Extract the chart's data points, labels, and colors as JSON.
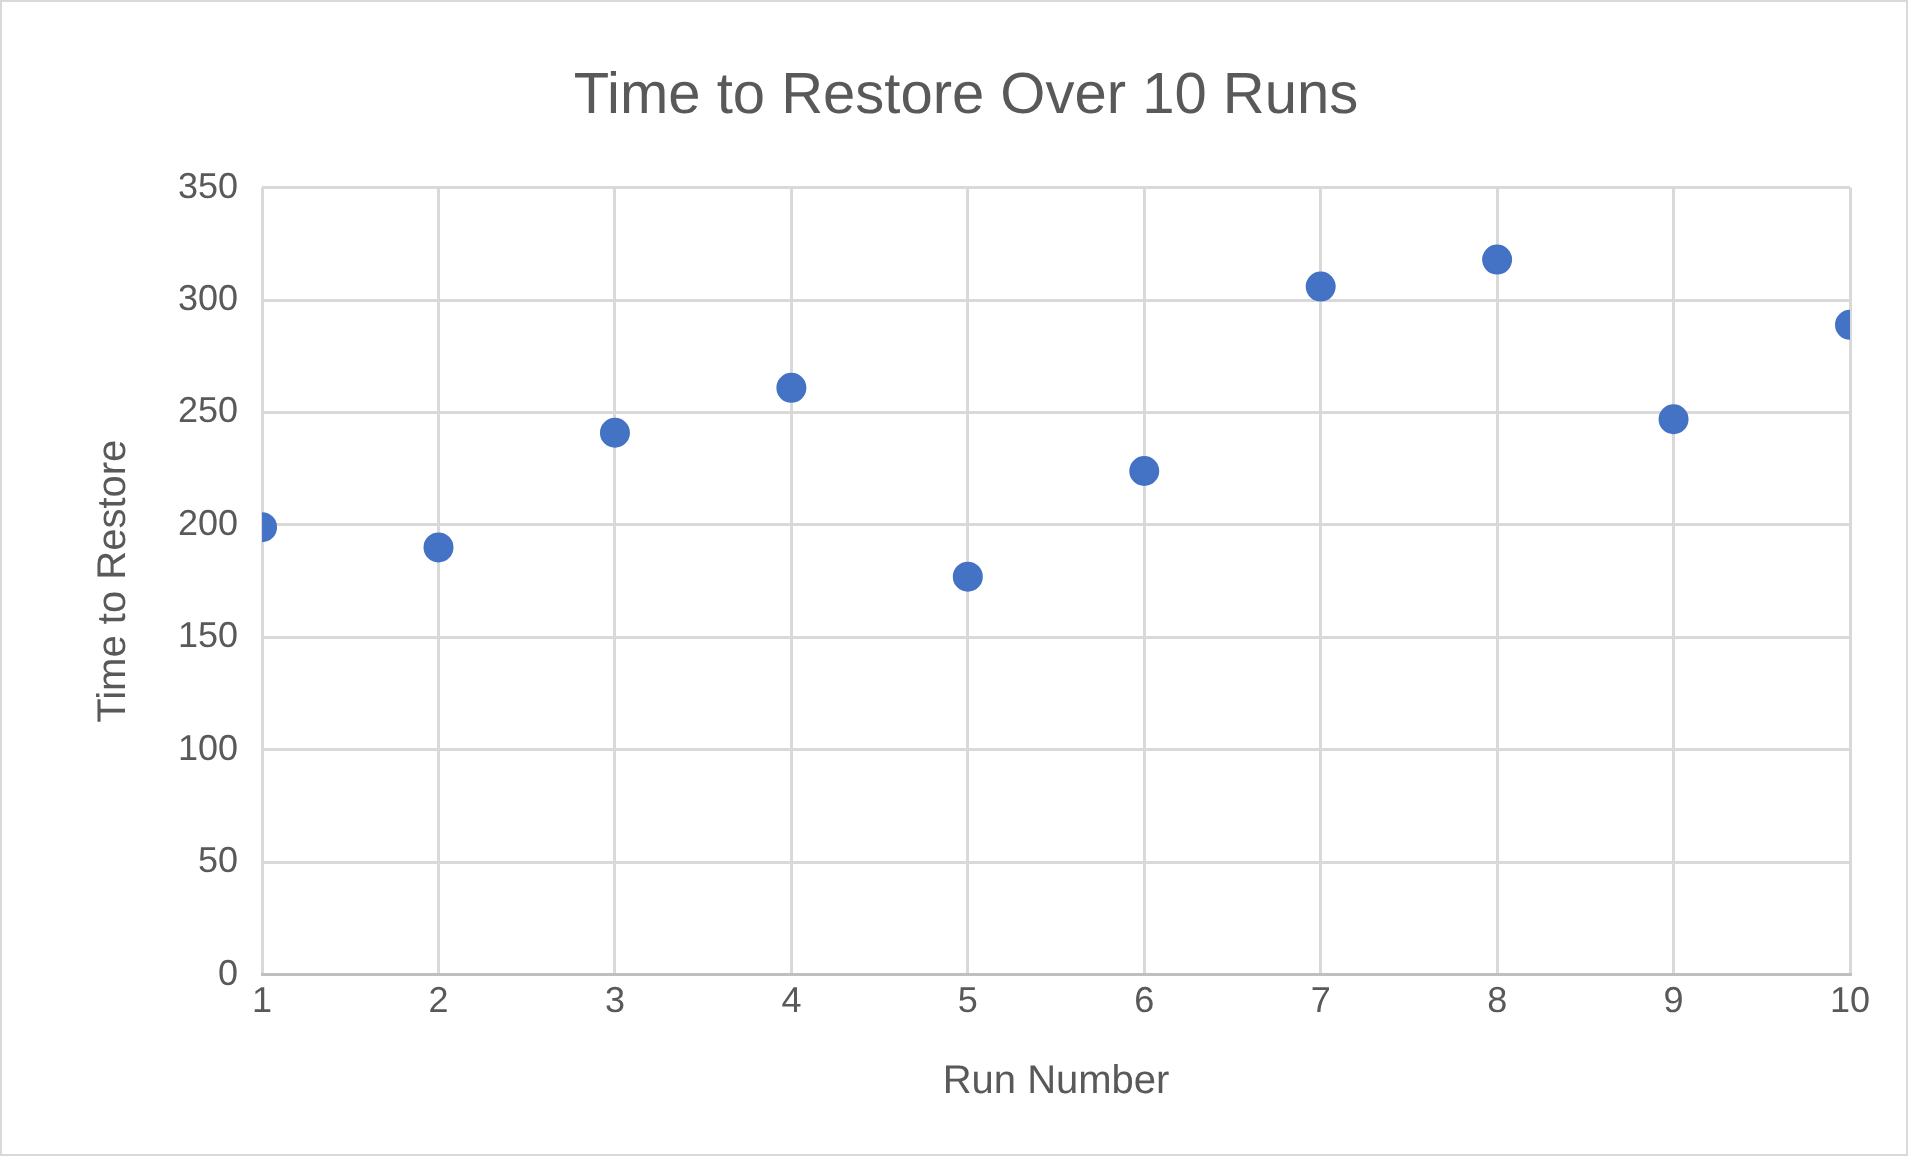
{
  "chart_data": {
    "type": "scatter",
    "title": "Time to Restore Over 10 Runs",
    "xlabel": "Run Number",
    "ylabel": "Time to Restore",
    "x": [
      1,
      2,
      3,
      4,
      5,
      6,
      7,
      8,
      9,
      10
    ],
    "series": [
      {
        "color": "#4472c4",
        "values": [
          199,
          190,
          241,
          261,
          177,
          224,
          306,
          318,
          247,
          289
        ]
      }
    ],
    "xlim": [
      1,
      10
    ],
    "xticks": [
      1,
      2,
      3,
      4,
      5,
      6,
      7,
      8,
      9,
      10
    ],
    "ylim": [
      0,
      350
    ],
    "yticks": [
      0,
      50,
      100,
      150,
      200,
      250,
      300,
      350
    ],
    "grid": true,
    "marker": "circle",
    "legend": false
  }
}
